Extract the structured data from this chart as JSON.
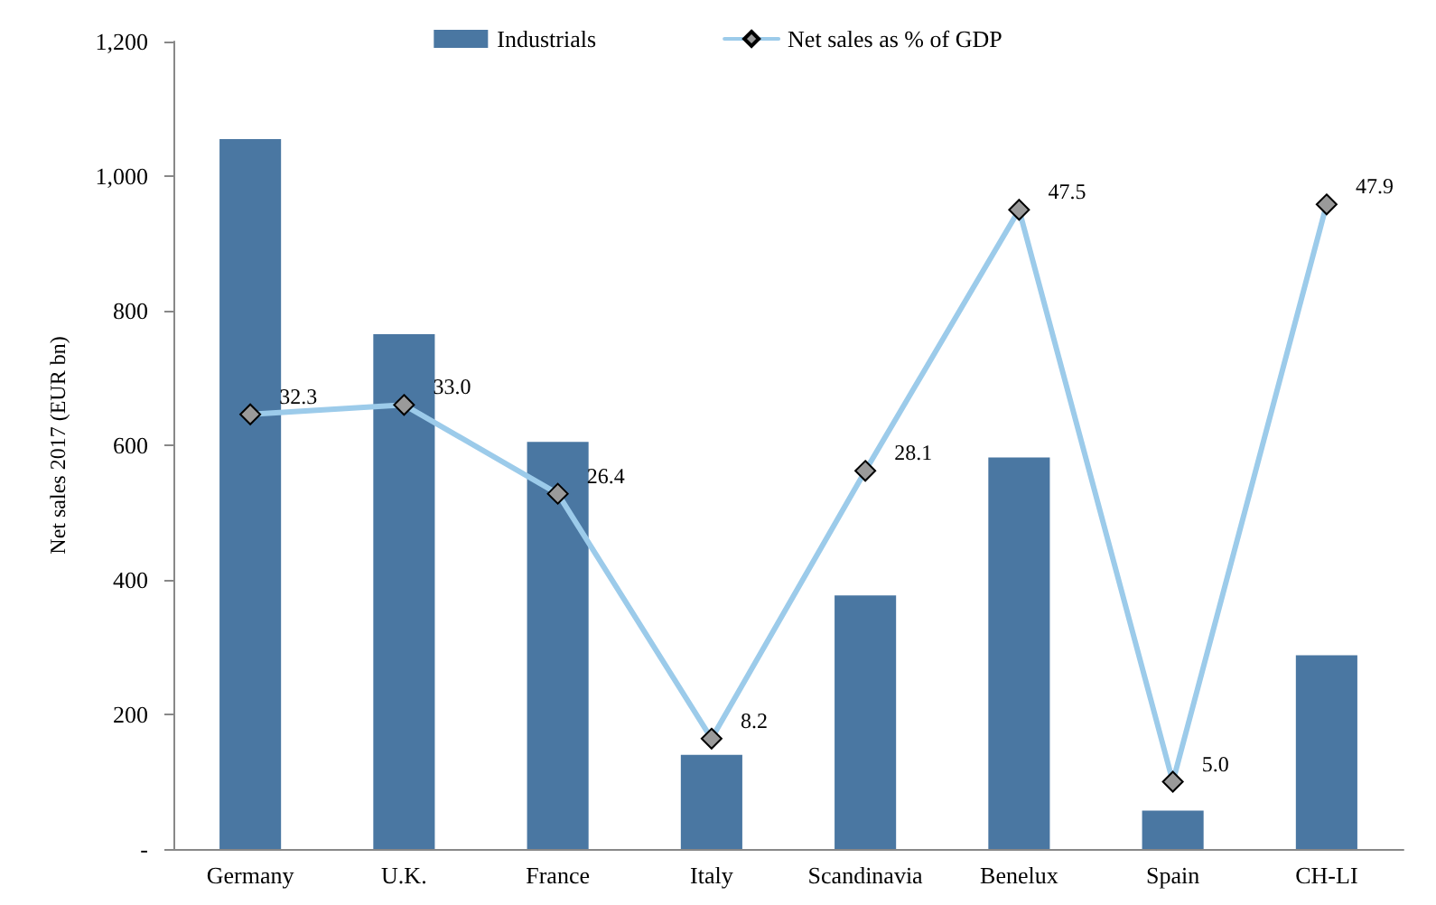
{
  "chart_data": {
    "type": "bar",
    "ylabel": "Net sales 2017 (EUR bn)",
    "categories": [
      "Germany",
      "U.K.",
      "France",
      "Italy",
      "Scandinavia",
      "Benelux",
      "Spain",
      "CH-LI"
    ],
    "series": [
      {
        "name": "Industrials",
        "color": "#4a77a2",
        "values": [
          1055,
          765,
          605,
          140,
          377,
          582,
          57,
          288
        ]
      },
      {
        "name": "Net sales as % of GDP",
        "type": "line",
        "axis": "y2",
        "color": "#9ccbea",
        "marker": "diamond",
        "values": [
          32.3,
          33.0,
          26.4,
          8.2,
          28.1,
          47.5,
          5.0,
          47.9
        ],
        "value_labels": [
          "32.3",
          "33.0",
          "26.4",
          "8.2",
          "28.1",
          "47.5",
          "5.0",
          "47.9"
        ]
      }
    ],
    "ylim": [
      0,
      1200
    ],
    "yticks": [
      {
        "value": 0,
        "label": "-"
      },
      200,
      400,
      600,
      800,
      {
        "value": 1000,
        "label": "1,000"
      },
      {
        "value": 1200,
        "label": "1,200"
      }
    ],
    "y2lim": [
      0,
      60
    ],
    "grid": false,
    "legend": "top"
  }
}
